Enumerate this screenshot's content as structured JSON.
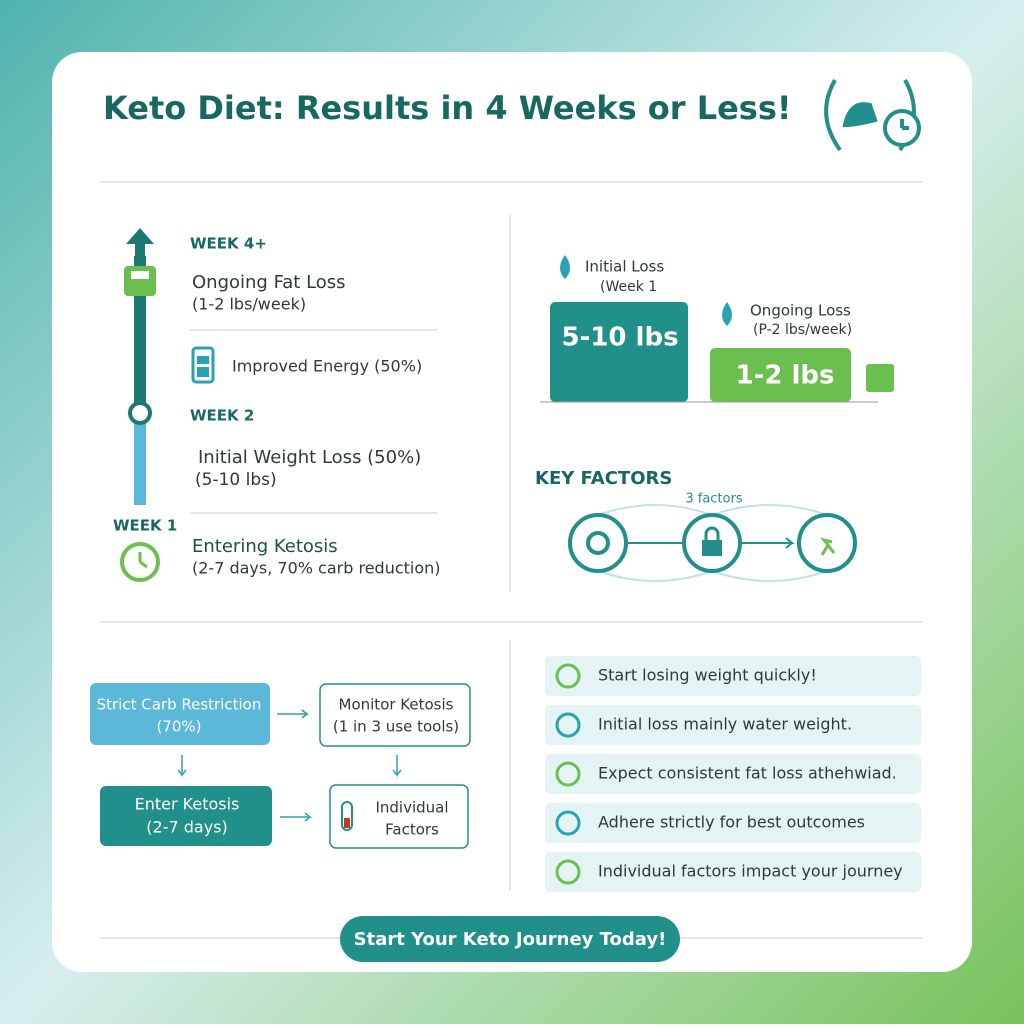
{
  "header": {
    "title": "Keto Diet: Results in 4 Weeks or Less!"
  },
  "timeline": {
    "week4": {
      "label": "WEEK 4+",
      "title": "Ongoing Fat Loss",
      "detail": "(1-2 lbs/week)"
    },
    "energy": "Improved Energy (50%)",
    "week2": {
      "label": "WEEK 2",
      "title": "Initial Weight Loss (50%)",
      "detail": "(5-10 lbs)"
    },
    "week1": {
      "label": "WEEK 1",
      "title": "Entering Ketosis",
      "detail": "(2-7 days, 70% carb reduction)"
    }
  },
  "comparison": {
    "initial": {
      "label": "Initial Loss",
      "detail": "(Week 1",
      "amount": "5-10 lbs"
    },
    "ongoing": {
      "label": "Ongoing Loss",
      "detail": "(P-2 lbs/week)",
      "amount": "1-2 lbs"
    }
  },
  "key_factors": {
    "title": "KEY FACTORS",
    "subtitle": "3 factors"
  },
  "flow": {
    "nodes": [
      {
        "lines": [
          "Strict Carb Restriction",
          "(70%)"
        ]
      },
      {
        "lines": [
          "Monitor Ketosis",
          "(1 in 3 use tools)"
        ]
      },
      {
        "lines": [
          "Enter Ketosis",
          "(2-7 days)"
        ]
      },
      {
        "lines": [
          "Individual",
          "Factors"
        ]
      }
    ]
  },
  "tips": [
    "Start losing weight quickly!",
    "Initial loss mainly water weight.",
    "Expect consistent fat loss athehwiad.",
    "Adhere strictly for best outcomes",
    "Individual factors impact your journey"
  ],
  "cta": "Start Your Keto Journey Today!"
}
